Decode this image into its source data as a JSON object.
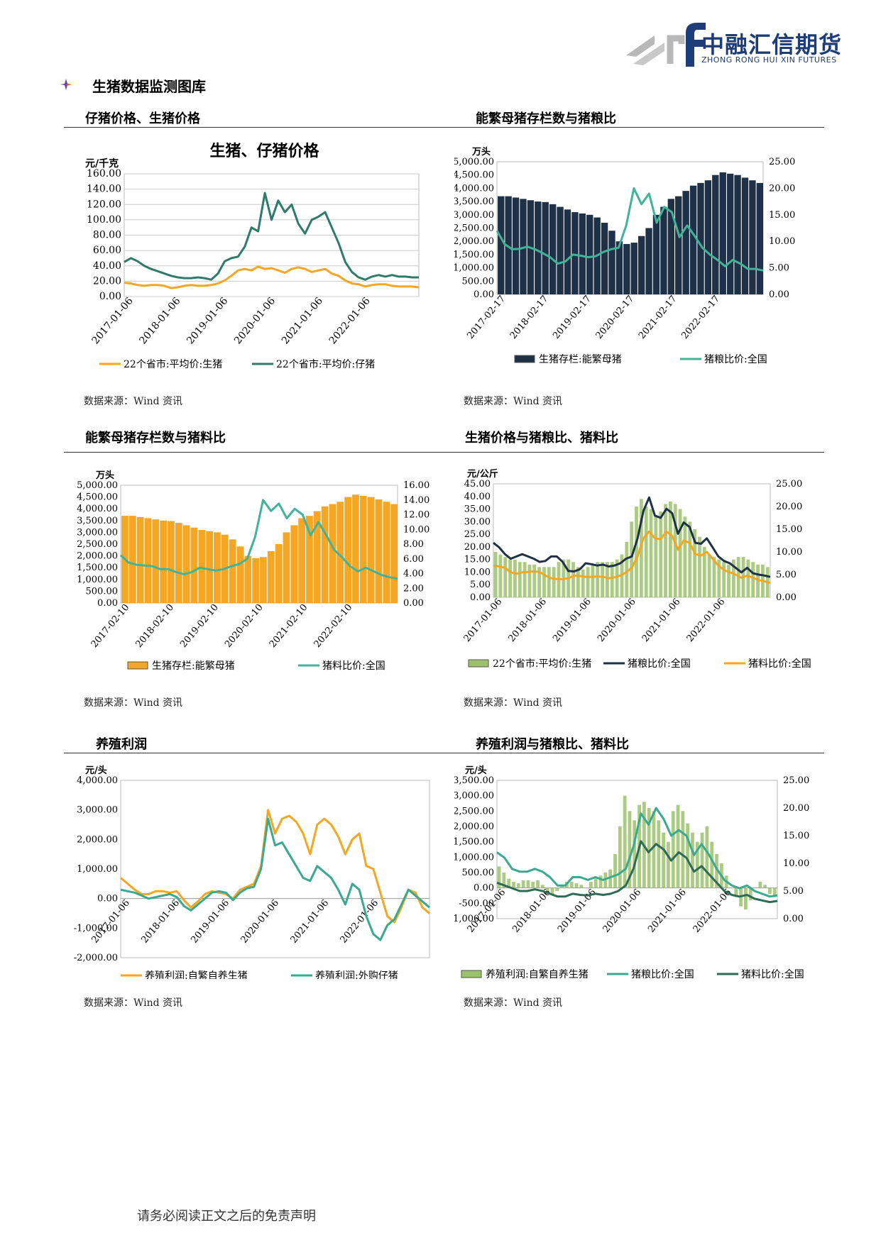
{
  "header": {
    "logo_cn": "中融汇信期货",
    "logo_en": "ZHONG RONG HUI XIN FUTURES",
    "section_title": "生猪数据监测图库"
  },
  "colors": {
    "dark_green": "#2e7b6a",
    "orange": "#f5a623",
    "navy": "#1f3147",
    "teal": "#40b399",
    "light_green": "#9bc26b",
    "profit_teal": "#3aa98d"
  },
  "footer": "请务必阅读正文之后的免责声明",
  "charts": [
    {
      "panel_title": "仔猪价格、生猪价格",
      "source": "数据来源：Wind 资讯",
      "chart_data": {
        "type": "line",
        "title": "生猪、仔猪价格",
        "ylabel": "元/千克",
        "ylim": [
          0,
          160
        ],
        "yticks": [
          "0.00",
          "20.00",
          "40.00",
          "60.00",
          "80.00",
          "100.00",
          "120.00",
          "140.00",
          "160.00"
        ],
        "xticks": [
          "2017-01-06",
          "2018-01-06",
          "2019-01-06",
          "2020-01-06",
          "2021-01-06",
          "2022-01-06"
        ],
        "x": [
          2017.0,
          2017.15,
          2017.3,
          2017.5,
          2017.7,
          2017.9,
          2018.1,
          2018.3,
          2018.5,
          2018.7,
          2018.9,
          2019.1,
          2019.25,
          2019.4,
          2019.5,
          2019.6,
          2019.7,
          2019.8,
          2019.9,
          2020.0,
          2020.1,
          2020.2,
          2020.3,
          2020.4,
          2020.5,
          2020.6,
          2020.7,
          2020.8,
          2020.9,
          2021.0,
          2021.1,
          2021.2,
          2021.3,
          2021.4,
          2021.5,
          2021.6,
          2021.7,
          2021.8,
          2021.9,
          2022.0,
          2022.1,
          2022.2,
          2022.3,
          2022.4,
          2022.5
        ],
        "series": [
          {
            "name": "22个省市:平均价:生猪",
            "color": "#f5a623",
            "values": [
              18,
              17,
              15,
              14,
              15,
              15,
              14,
              11,
              12,
              14,
              15,
              14,
              14,
              15,
              17,
              21,
              27,
              34,
              36,
              34,
              39,
              36,
              37,
              34,
              31,
              36,
              38,
              36,
              32,
              34,
              36,
              30,
              27,
              21,
              17,
              16,
              13,
              15,
              16,
              16,
              14,
              13,
              13,
              13,
              12
            ]
          },
          {
            "name": "22个省市:平均价:仔猪",
            "color": "#2e7b6a",
            "values": [
              45,
              50,
              46,
              40,
              36,
              33,
              30,
              27,
              25,
              24,
              24,
              25,
              24,
              22,
              30,
              46,
              50,
              52,
              65,
              90,
              85,
              135,
              100,
              125,
              110,
              120,
              95,
              82,
              100,
              104,
              110,
              90,
              70,
              45,
              32,
              25,
              22,
              26,
              28,
              26,
              28,
              26,
              26,
              25,
              25
            ]
          }
        ]
      }
    },
    {
      "panel_title": "能繁母猪存栏数与猪粮比",
      "source": "数据来源：Wind 资讯",
      "chart_data": {
        "type": "bar",
        "ylabel": "万头",
        "ylim": [
          0,
          5000
        ],
        "y2lim": [
          0,
          25
        ],
        "yticks": [
          "0.00",
          "500.00",
          "1,000.00",
          "1,500.00",
          "2,000.00",
          "2,500.00",
          "3,000.00",
          "3,500.00",
          "4,000.00",
          "4,500.00",
          "5,000.00"
        ],
        "y2ticks": [
          "0.00",
          "5.00",
          "10.00",
          "15.00",
          "20.00",
          "25.00"
        ],
        "xticks": [
          "2017-02-17",
          "2018-02-17",
          "2019-02-17",
          "2020-02-17",
          "2021-02-17",
          "2022-02-17"
        ],
        "bars_name": "生猪存栏:能繁母猪",
        "bars_color": "#1f3147",
        "bars": [
          3700,
          3700,
          3650,
          3600,
          3550,
          3500,
          3480,
          3400,
          3300,
          3200,
          3100,
          3050,
          3000,
          2900,
          2700,
          2400,
          2000,
          1900,
          1950,
          2200,
          2500,
          3000,
          3300,
          3600,
          3700,
          3900,
          4100,
          4200,
          4300,
          4500,
          4600,
          4550,
          4500,
          4400,
          4300,
          4200
        ],
        "line_name": "猪粮比价:全国",
        "line_color": "#40b399",
        "line": [
          12,
          9.5,
          8.5,
          8.6,
          9,
          8.5,
          7.8,
          7,
          5.8,
          6.2,
          7.5,
          7.3,
          7,
          7.2,
          8,
          8.5,
          8.8,
          13,
          20,
          17,
          19,
          13.5,
          16.5,
          15.5,
          10.8,
          13,
          11,
          8.8,
          7.5,
          6.5,
          5.3,
          6.5,
          5.8,
          4.8,
          4.8,
          4.5
        ]
      }
    },
    {
      "panel_title": "能繁母猪存栏数与猪料比",
      "source": "数据来源：Wind 资讯",
      "chart_data": {
        "type": "bar",
        "ylabel": "万头",
        "ylim": [
          0,
          5000
        ],
        "y2lim": [
          0,
          16
        ],
        "yticks": [
          "0.00",
          "500.00",
          "1,000.00",
          "1,500.00",
          "2,000.00",
          "2,500.00",
          "3,000.00",
          "3,500.00",
          "4,000.00",
          "4,500.00",
          "5,000.00"
        ],
        "y2ticks": [
          "0.00",
          "2.00",
          "4.00",
          "6.00",
          "8.00",
          "10.00",
          "12.00",
          "14.00",
          "16.00"
        ],
        "xticks": [
          "2017-02-10",
          "2018-02-10",
          "2019-02-10",
          "2020-02-10",
          "2021-02-10",
          "2022-02-10"
        ],
        "bars_name": "生猪存栏:能繁母猪",
        "bars_color": "#f5a623",
        "bars": [
          3700,
          3700,
          3650,
          3600,
          3550,
          3500,
          3480,
          3400,
          3300,
          3200,
          3100,
          3050,
          3000,
          2900,
          2700,
          2400,
          2000,
          1900,
          1950,
          2200,
          2500,
          3000,
          3300,
          3600,
          3700,
          3900,
          4100,
          4200,
          4300,
          4500,
          4600,
          4550,
          4500,
          4400,
          4300,
          4200
        ],
        "line_name": "猪料比价:全国",
        "line_color": "#40b399",
        "line": [
          6.5,
          5.5,
          5.2,
          5.1,
          5,
          4.6,
          4.6,
          4.2,
          3.9,
          4.2,
          4.8,
          4.6,
          4.4,
          4.6,
          5,
          5.3,
          6,
          9,
          14,
          12.5,
          13.5,
          11.5,
          12.8,
          12,
          9.2,
          11,
          9.2,
          7.2,
          6.2,
          5,
          4.3,
          4.8,
          4.3,
          3.8,
          3.5,
          3.3
        ]
      }
    },
    {
      "panel_title": "生猪价格与猪粮比、猪料比",
      "source": "数据来源：Wind 资讯",
      "chart_data": {
        "type": "bar",
        "ylabel": "元/公斤",
        "ylim": [
          0,
          45
        ],
        "y2lim": [
          0,
          25
        ],
        "yticks": [
          "0.00",
          "5.00",
          "10.00",
          "15.00",
          "20.00",
          "25.00",
          "30.00",
          "35.00",
          "40.00",
          "45.00"
        ],
        "y2ticks": [
          "0.00",
          "5.00",
          "10.00",
          "15.00",
          "20.00",
          "25.00"
        ],
        "xticks": [
          "2017-01-06",
          "2018-01-06",
          "2019-01-06",
          "2020-01-06",
          "2021-01-06",
          "2022-01-06"
        ],
        "bars_name": "22个省市:平均价:生猪",
        "bars_color": "#9bc26b",
        "bars": [
          18,
          17,
          16,
          15,
          15,
          14,
          14,
          13,
          13,
          12,
          12,
          12,
          12,
          14,
          15,
          15,
          14,
          12,
          11,
          12,
          13,
          14,
          14,
          14,
          14,
          15,
          17,
          22,
          30,
          36,
          39,
          36,
          35,
          32,
          34,
          37,
          38,
          37,
          35,
          32,
          30,
          27,
          24,
          20,
          17,
          16,
          15,
          14,
          13,
          15,
          16,
          16,
          15,
          14,
          13,
          13,
          12
        ],
        "lines": [
          {
            "name": "猪粮比价:全国",
            "color": "#1f3147",
            "values": [
              12,
              11,
              9.5,
              8.5,
              9,
              9.5,
              9,
              8.5,
              7.8,
              8,
              9,
              9,
              7.8,
              5.8,
              5.7,
              6.2,
              7.5,
              7.3,
              7,
              7.2,
              6.8,
              7,
              7.5,
              8.5,
              9,
              13,
              19,
              22,
              18,
              17.5,
              19.5,
              18.5,
              14,
              16.5,
              15.5,
              12,
              11.8,
              13,
              11,
              9,
              8,
              7.5,
              6.5,
              5.5,
              6.5,
              5.3,
              5,
              4.8,
              4.5
            ]
          },
          {
            "name": "猪料比价:全国",
            "color": "#f5a623",
            "values": [
              7,
              6.8,
              6.5,
              5.5,
              5.2,
              5.5,
              5.6,
              5.7,
              5.6,
              4.8,
              4.2,
              4,
              4,
              4.2,
              4.8,
              4.7,
              4.5,
              4.5,
              4.6,
              4.5,
              4.2,
              4.4,
              4.8,
              5.5,
              6.5,
              9,
              13,
              14.5,
              13,
              12.8,
              14.5,
              13.5,
              10.5,
              12.5,
              12,
              9.5,
              9.2,
              10,
              8.5,
              7,
              6,
              5.5,
              5,
              4.3,
              4.8,
              4.3,
              3.8,
              3.5,
              3.2
            ]
          }
        ]
      }
    },
    {
      "panel_title": "养殖利润",
      "source": "数据来源：Wind 资讯",
      "chart_data": {
        "type": "line",
        "ylabel": "元/头",
        "ylim": [
          -2000,
          4000
        ],
        "yticks": [
          "-2,000.00",
          "-1,000.00",
          "0.00",
          "1,000.00",
          "2,000.00",
          "3,000.00",
          "4,000.00"
        ],
        "xticks": [
          "2017-01-06",
          "2018-01-06",
          "2019-01-06",
          "2020-01-06",
          "2021-01-06",
          "2022-01-06"
        ],
        "series": [
          {
            "name": "养殖利润:自繁自养生猪",
            "color": "#f5a623",
            "values": [
              700,
              500,
              300,
              150,
              150,
              250,
              250,
              200,
              250,
              -50,
              -300,
              -100,
              150,
              250,
              200,
              150,
              0,
              300,
              400,
              500,
              1100,
              3000,
              2200,
              2700,
              2800,
              2600,
              2200,
              1500,
              2500,
              2700,
              2500,
              2100,
              1500,
              2000,
              2200,
              1100,
              1000,
              200,
              -600,
              -800,
              -300,
              300,
              200,
              -300,
              -500
            ]
          },
          {
            "name": "养殖利润:外购仔猪",
            "color": "#3aa98d",
            "values": [
              300,
              250,
              200,
              100,
              0,
              50,
              100,
              150,
              50,
              -250,
              -400,
              -200,
              0,
              200,
              250,
              200,
              -50,
              200,
              350,
              400,
              1000,
              2700,
              1800,
              1900,
              1500,
              1100,
              700,
              600,
              1100,
              900,
              700,
              300,
              -200,
              500,
              300,
              -600,
              -1200,
              -1400,
              -900,
              -700,
              -200,
              300,
              100,
              -100,
              -300
            ]
          }
        ]
      }
    },
    {
      "panel_title": "养殖利润与猪粮比、猪料比",
      "source": "数据来源：Wind 资讯",
      "chart_data": {
        "type": "bar",
        "ylabel": "元/头",
        "ylim": [
          -1000,
          3500
        ],
        "y2lim": [
          0,
          25
        ],
        "yticks": [
          "-1,000.00",
          "-500.00",
          "0.00",
          "500.00",
          "1,000.00",
          "1,500.00",
          "2,000.00",
          "2,500.00",
          "3,000.00",
          "3,500.00"
        ],
        "y2ticks": [
          "0.00",
          "5.00",
          "10.00",
          "15.00",
          "20.00",
          "25.00"
        ],
        "xticks": [
          "2017-01-06",
          "2018-01-06",
          "2019-01-06",
          "2020-01-06",
          "2021-01-06",
          "2022-01-06"
        ],
        "bars_name": "养殖利润:自繁自养生猪",
        "bars_color": "#9bc26b",
        "bars": [
          700,
          500,
          300,
          200,
          150,
          250,
          250,
          200,
          250,
          100,
          -100,
          -200,
          -100,
          100,
          200,
          200,
          150,
          100,
          0,
          200,
          300,
          400,
          500,
          600,
          1100,
          2000,
          3000,
          2500,
          2200,
          2700,
          2800,
          2600,
          2500,
          2200,
          1800,
          1500,
          2500,
          2700,
          2500,
          2100,
          1800,
          1500,
          1800,
          2000,
          1500,
          1100,
          800,
          400,
          0,
          -300,
          -600,
          -700,
          -400,
          0,
          200,
          100,
          -200,
          -300
        ],
        "lines": [
          {
            "name": "猪粮比价:全国",
            "color": "#3aa98d",
            "values": [
              12,
              11,
              9,
              8.5,
              8.5,
              9,
              8.5,
              7.5,
              6,
              6,
              7.5,
              7.5,
              7,
              7.5,
              7,
              7.5,
              8,
              9,
              13,
              19,
              17,
              20,
              18,
              15,
              16,
              15,
              11.5,
              13.5,
              11.5,
              9,
              7,
              6,
              5.5,
              6,
              5,
              4.5,
              4,
              4.2
            ]
          },
          {
            "name": "猪料比价:全国",
            "color": "#2e6b55",
            "values": [
              6.5,
              6,
              5.5,
              5,
              5,
              5.3,
              5,
              4.5,
              4,
              4,
              4.5,
              4.3,
              4.2,
              4.5,
              4.3,
              4.5,
              5,
              6,
              9,
              14,
              12,
              13.5,
              12.5,
              10.5,
              12,
              11,
              8.5,
              9.5,
              8,
              6.5,
              5,
              4.3,
              4,
              4.3,
              3.6,
              3.3,
              3,
              3.2
            ]
          }
        ]
      }
    }
  ]
}
